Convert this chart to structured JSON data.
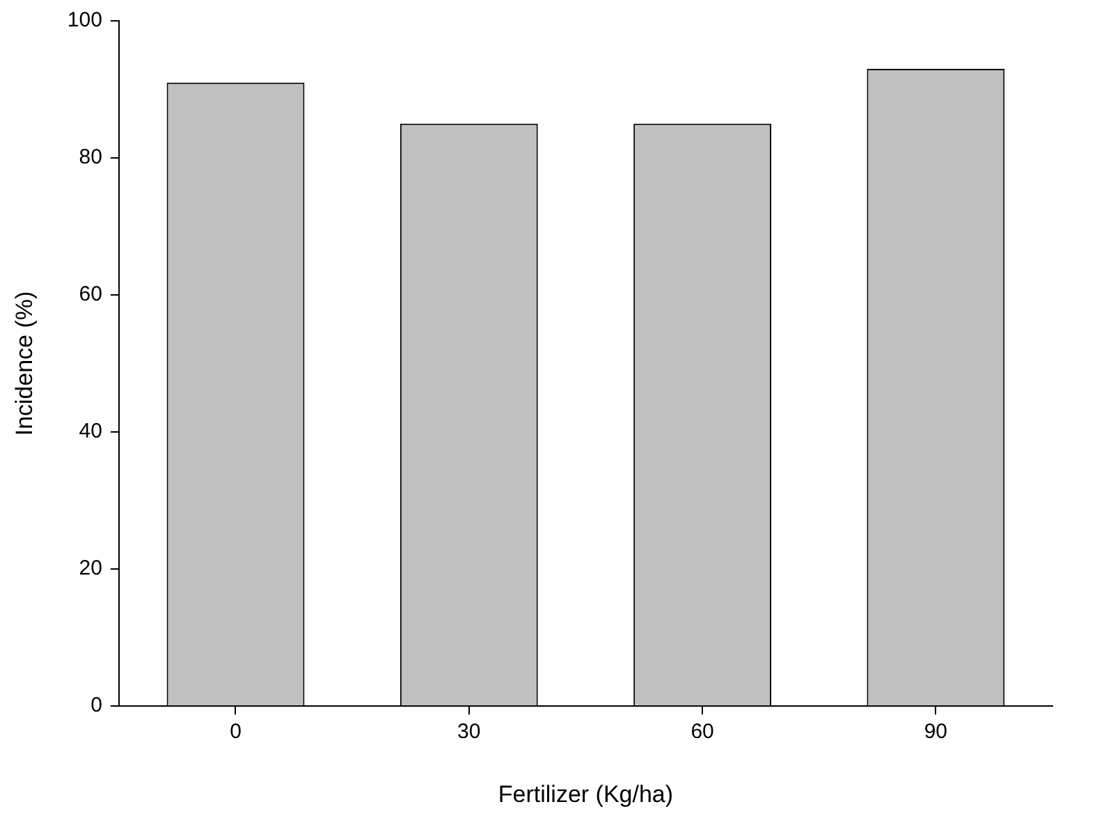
{
  "chart_data": {
    "type": "bar",
    "xlabel": "Fertilizer (Kg/ha)",
    "ylabel": "Incidence (%)",
    "categories": [
      "0",
      "30",
      "60",
      "90"
    ],
    "values": [
      91,
      85,
      85,
      93
    ],
    "color": "#c0c0c0",
    "ylim": [
      0,
      100
    ],
    "yticks": [
      0,
      20,
      40,
      60,
      80,
      100
    ],
    "grid": false,
    "legend": false
  }
}
